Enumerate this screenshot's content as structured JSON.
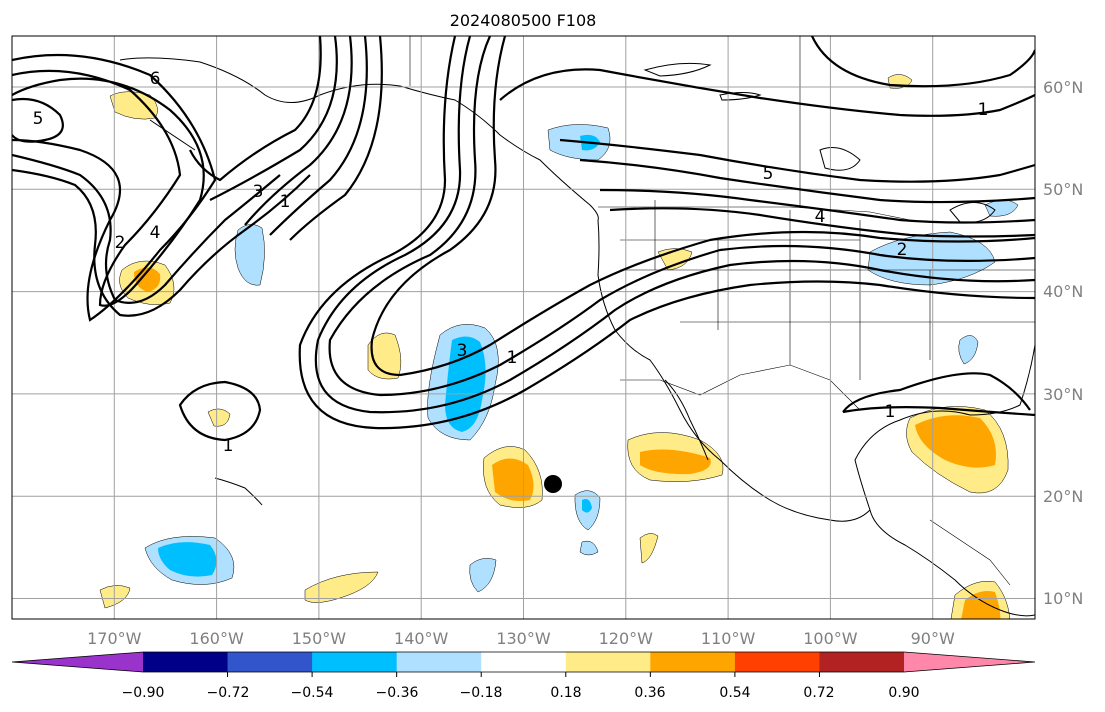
{
  "title": "2024080500 F108",
  "map": {
    "projection": "PlateCarree",
    "lon_range": [
      -180,
      -80
    ],
    "lat_range": [
      8,
      65
    ],
    "lon_ticks": [
      "170°W",
      "160°W",
      "150°W",
      "140°W",
      "130°W",
      "120°W",
      "110°W",
      "100°W",
      "90°W"
    ],
    "lat_ticks": [
      "10°N",
      "20°N",
      "30°N",
      "40°N",
      "50°N",
      "60°N"
    ],
    "grid": true,
    "marker": {
      "name": "black-dot",
      "lon": -126.5,
      "lat": 21
    }
  },
  "colorbar": {
    "orientation": "horizontal",
    "extend": "both",
    "colors": [
      "#9933cc",
      "#000088",
      "#3355cc",
      "#00bfff",
      "#b0e0ff",
      "#ffffff",
      "#ffeb88",
      "#ffa500",
      "#ff4000",
      "#b22222",
      "#ff88aa"
    ],
    "tick_labels": [
      "−0.90",
      "−0.72",
      "−0.54",
      "−0.36",
      "−0.18",
      "0.18",
      "0.36",
      "0.54",
      "0.72",
      "0.90"
    ]
  },
  "contour_labels": [
    "5",
    "6",
    "3",
    "1",
    "2",
    "4",
    "3",
    "1",
    "5",
    "4",
    "2",
    "1",
    "1",
    "1"
  ]
}
